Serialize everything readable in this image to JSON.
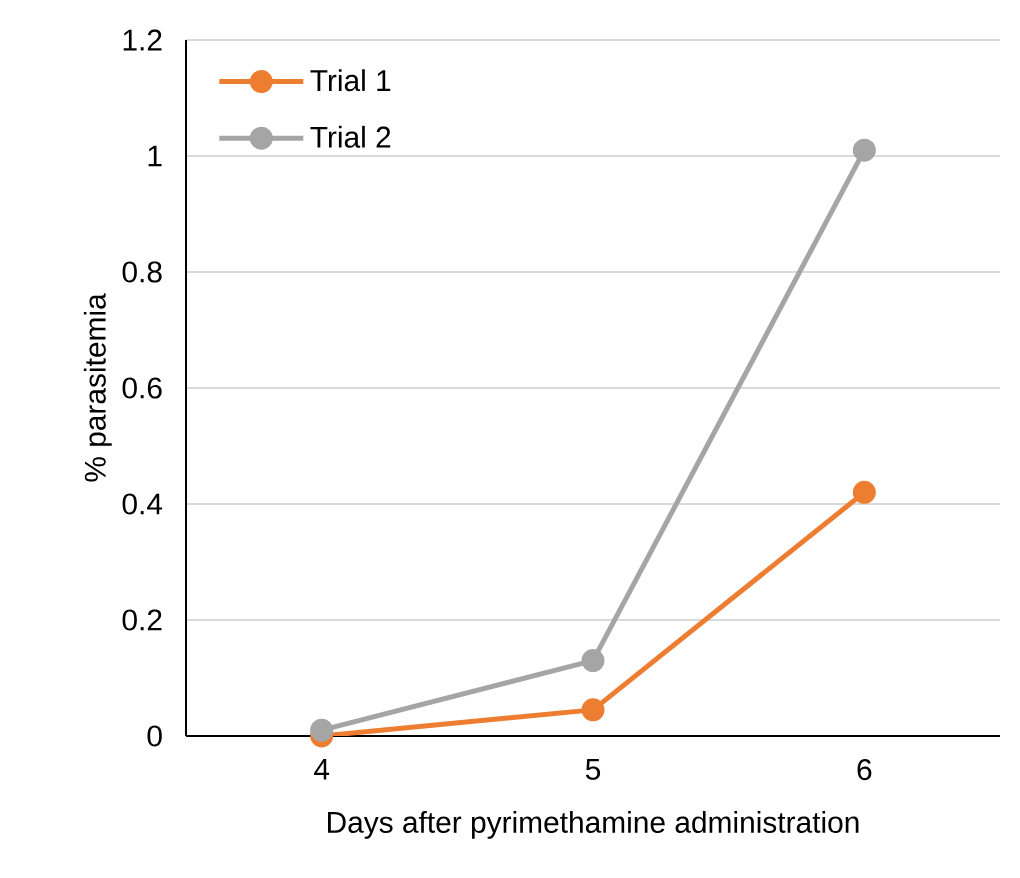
{
  "chart_data": {
    "type": "line",
    "xlabel": "Days after pyrimethamine administration",
    "ylabel": "% parasitemia",
    "categories": [
      "4",
      "5",
      "6"
    ],
    "series": [
      {
        "name": "Trial 1",
        "color": "#ed7d31",
        "values": [
          0,
          0.045,
          0.42
        ]
      },
      {
        "name": "Trial 2",
        "color": "#a5a5a5",
        "values": [
          0.01,
          0.13,
          1.01
        ]
      }
    ],
    "ylim": [
      0,
      1.2
    ],
    "yticks": [
      0,
      0.2,
      0.4,
      0.6,
      0.8,
      1,
      1.2
    ],
    "grid": "y",
    "legend": "top left",
    "marker": "circle",
    "line_style": "solid"
  }
}
